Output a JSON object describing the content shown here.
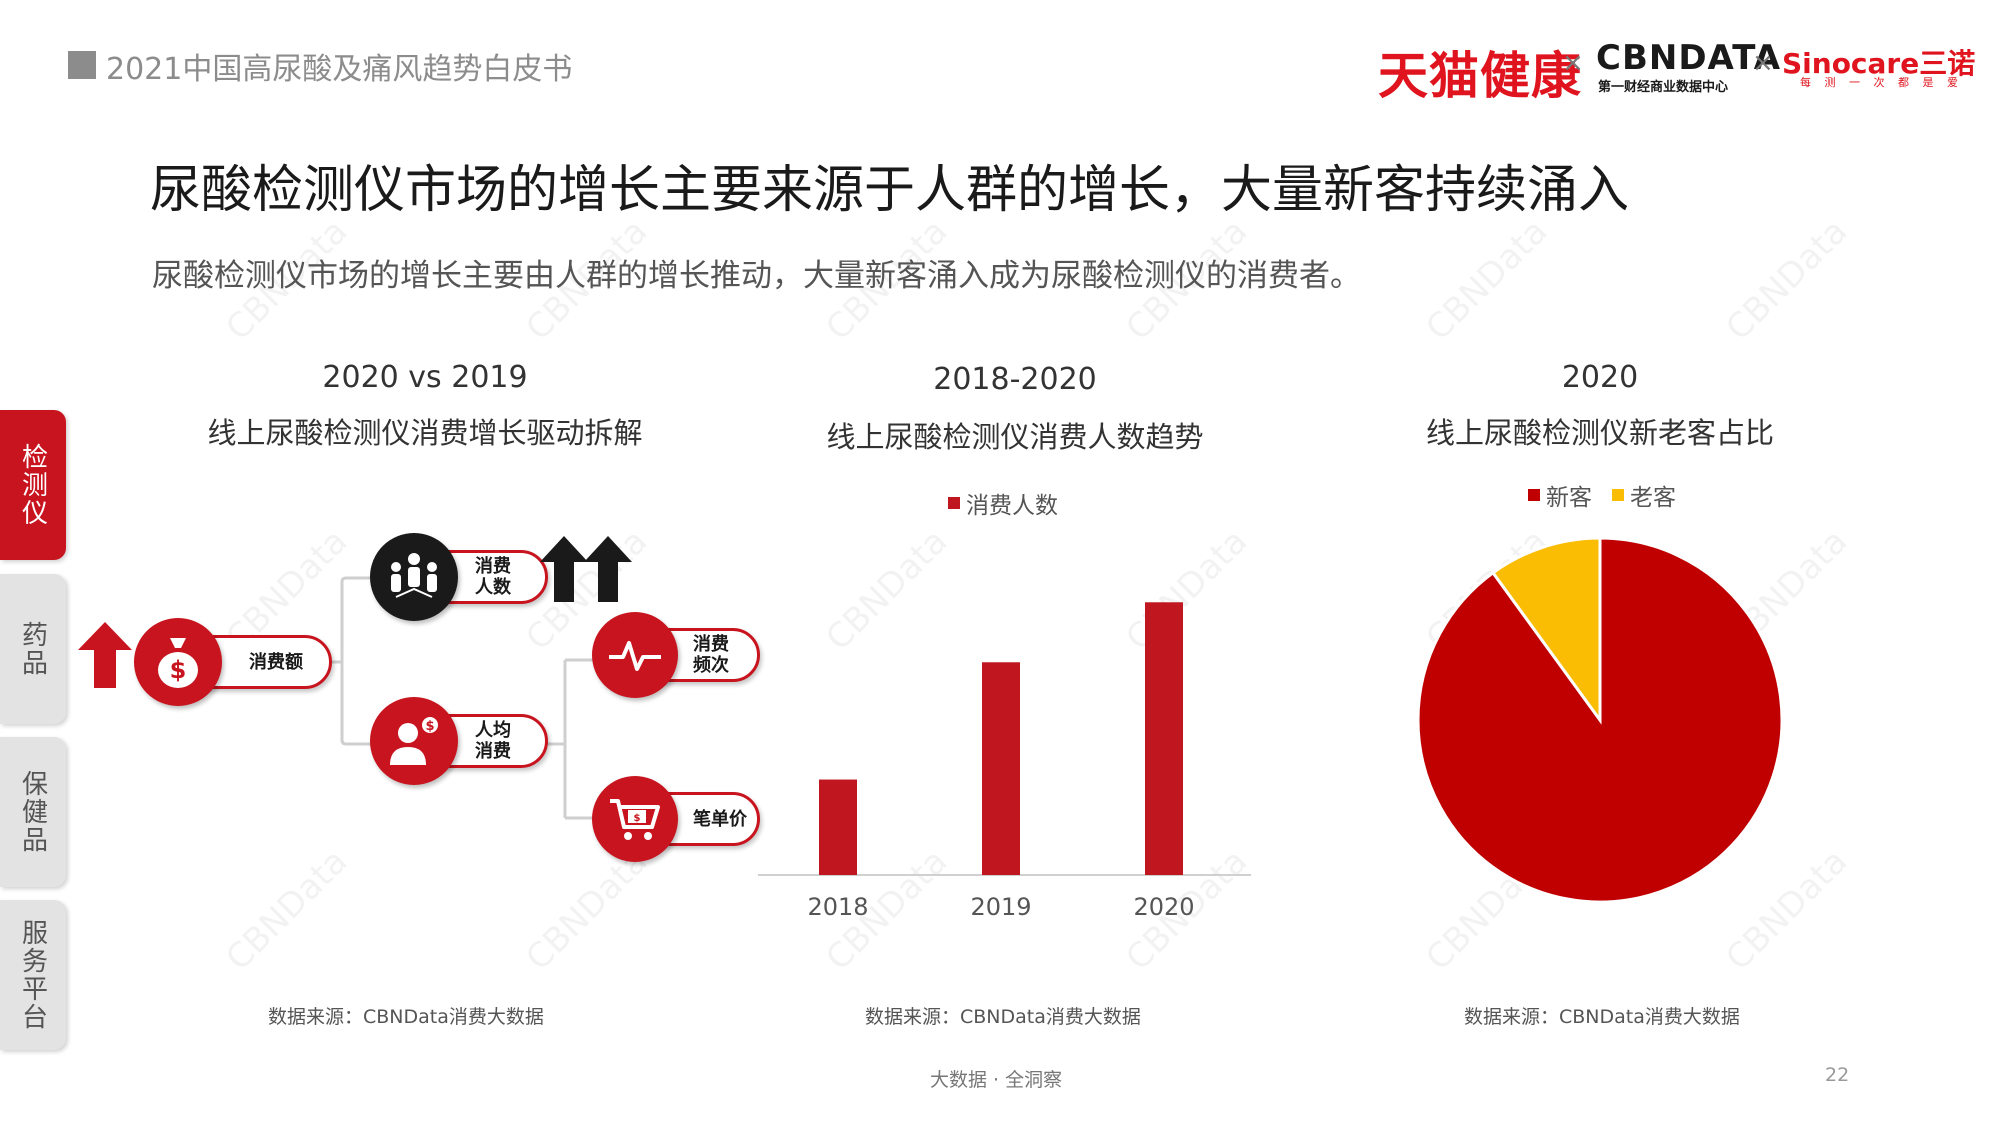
{
  "header": {
    "report_title": "2021中国高尿酸及痛风趋势白皮书",
    "logo_tmall": "天猫健康",
    "logo_cbn": "CBNDATA",
    "logo_cbn_sub": "第一财经商业数据中心",
    "logo_sino": "Sinocare三诺",
    "logo_sino_sub": "每 测 一 次 都 是 爱",
    "separator": "×"
  },
  "main_title": "尿酸检测仪市场的增长主要来源于人群的增长，大量新客持续涌入",
  "subtitle": "尿酸检测仪市场的增长主要由人群的增长推动，大量新客涌入成为尿酸检测仪的消费者。",
  "nav": {
    "tabs": [
      {
        "label": "检测仪",
        "active": true
      },
      {
        "label": "药品",
        "active": false
      },
      {
        "label": "保健品",
        "active": false
      },
      {
        "label": "服务平台",
        "active": false
      }
    ]
  },
  "section1": {
    "heading1": "2020 vs 2019",
    "heading2": "线上尿酸检测仪消费增长驱动拆解",
    "nodes": {
      "spend": "消费额",
      "buyers_line1": "消费",
      "buyers_line2": "人数",
      "avg_line1": "人均",
      "avg_line2": "消费",
      "freq_line1": "消费",
      "freq_line2": "频次",
      "unit_price": "笔单价"
    },
    "indicators": {
      "spend": "up",
      "buyers": "up-strong"
    },
    "source": "数据来源：CBNData消费大数据"
  },
  "section2": {
    "heading1": "2018-2020",
    "heading2": "线上尿酸检测仪消费人数趋势",
    "source": "数据来源：CBNData消费大数据"
  },
  "section3": {
    "heading1": "2020",
    "heading2": "线上尿酸检测仪新老客占比",
    "source": "数据来源：CBNData消费大数据"
  },
  "chart_data": [
    {
      "type": "bar",
      "title": "线上尿酸检测仪消费人数趋势",
      "categories": [
        "2018",
        "2019",
        "2020"
      ],
      "series": [
        {
          "name": "消费人数",
          "values": [
            35,
            78,
            100
          ],
          "color": "#c0161f"
        }
      ],
      "ylim": [
        0,
        110
      ],
      "y_axis_visible": false,
      "grid": false,
      "legend": "top-center"
    },
    {
      "type": "pie",
      "title": "线上尿酸检测仪新老客占比",
      "labels": [
        "新客",
        "老客"
      ],
      "values": [
        90,
        10
      ],
      "colors": [
        "#c00000",
        "#fbbc04"
      ],
      "start_angle": "12 o'clock, clockwise",
      "legend": "top-center"
    }
  ],
  "footer": {
    "tagline": "大数据 · 全洞察",
    "page_number": "22"
  },
  "colors": {
    "accent_red": "#c8141e",
    "bar_red": "#c0161f",
    "pie_red": "#c00000",
    "pie_yellow": "#fbbc04"
  }
}
